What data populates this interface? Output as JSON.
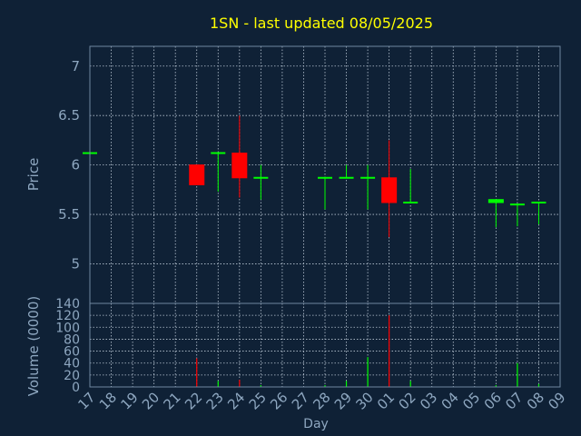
{
  "chart_data": {
    "type": "candlestick",
    "title": "1SN - last updated 08/05/2025",
    "xlabel": "Day",
    "x_tick_labels": [
      "17",
      "18",
      "19",
      "20",
      "21",
      "22",
      "23",
      "24",
      "25",
      "26",
      "27",
      "28",
      "29",
      "30",
      "01",
      "02",
      "03",
      "04",
      "05",
      "06",
      "07",
      "08",
      "09"
    ],
    "price_panel": {
      "ylabel": "Price",
      "ylim": [
        4.6,
        7.2
      ],
      "yticks": [
        5,
        5.5,
        6,
        6.5,
        7
      ],
      "ytick_labels": [
        "5",
        "5.5",
        "6",
        "6.5",
        "7"
      ],
      "grid": true
    },
    "volume_panel": {
      "ylabel": "Volume (0000)",
      "ylim": [
        0,
        140
      ],
      "yticks": [
        0,
        20,
        40,
        60,
        80,
        100,
        120,
        140
      ],
      "ytick_labels": [
        "0",
        "20",
        "40",
        "60",
        "80",
        "100",
        "120",
        "140"
      ],
      "grid": true
    },
    "candles": [
      {
        "day": "17",
        "open": 6.12,
        "high": 6.12,
        "low": 6.12,
        "close": 6.12,
        "volume": 0,
        "direction": "up"
      },
      {
        "day": "22",
        "open": 6.0,
        "high": 6.0,
        "low": 5.8,
        "close": 5.8,
        "volume": 48,
        "direction": "down"
      },
      {
        "day": "23",
        "open": 6.12,
        "high": 6.12,
        "low": 5.73,
        "close": 6.12,
        "volume": 10,
        "direction": "up"
      },
      {
        "day": "24",
        "open": 6.12,
        "high": 6.5,
        "low": 5.67,
        "close": 5.87,
        "volume": 12,
        "direction": "down"
      },
      {
        "day": "25",
        "open": 5.87,
        "high": 6.0,
        "low": 5.65,
        "close": 5.87,
        "volume": 3,
        "direction": "up"
      },
      {
        "day": "28",
        "open": 5.87,
        "high": 5.87,
        "low": 5.55,
        "close": 5.87,
        "volume": 3,
        "direction": "up"
      },
      {
        "day": "29",
        "open": 5.87,
        "high": 6.0,
        "low": 5.87,
        "close": 5.87,
        "volume": 10,
        "direction": "up"
      },
      {
        "day": "30",
        "open": 5.87,
        "high": 6.0,
        "low": 5.55,
        "close": 5.87,
        "volume": 50,
        "direction": "up"
      },
      {
        "day": "01",
        "open": 5.87,
        "high": 6.25,
        "low": 5.27,
        "close": 5.62,
        "volume": 120,
        "direction": "down"
      },
      {
        "day": "02",
        "open": 5.62,
        "high": 5.96,
        "low": 5.62,
        "close": 5.62,
        "volume": 10,
        "direction": "up"
      },
      {
        "day": "06",
        "open": 5.62,
        "high": 5.65,
        "low": 5.37,
        "close": 5.65,
        "volume": 3,
        "direction": "up"
      },
      {
        "day": "07",
        "open": 5.6,
        "high": 5.6,
        "low": 5.38,
        "close": 5.6,
        "volume": 40,
        "direction": "up"
      },
      {
        "day": "08",
        "open": 5.62,
        "high": 5.62,
        "low": 5.4,
        "close": 5.62,
        "volume": 5,
        "direction": "up"
      }
    ]
  },
  "colors": {
    "background": "#0f2136",
    "panel_border": "#6f87a0",
    "grid": "#b9c6d4",
    "text": "#8ea7c0",
    "title": "#ffff00",
    "up": "#00ff00",
    "down": "#ff0000"
  }
}
